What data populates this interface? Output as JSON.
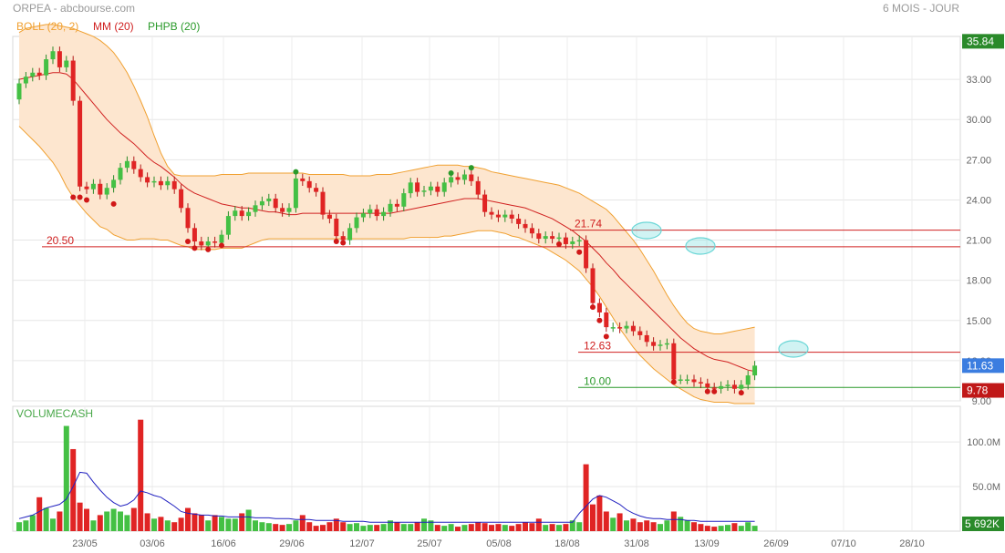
{
  "header": {
    "title": "ORPEA - abcbourse.com",
    "period": "6 MOIS - JOUR"
  },
  "legend": [
    {
      "label": "BOLL (20, 2)",
      "color": "#f0a030"
    },
    {
      "label": "MM (20)",
      "color": "#d02020"
    },
    {
      "label": "PHPB (20)",
      "color": "#2a9a2a"
    }
  ],
  "volume_panel": {
    "label": "VOLUMECASH"
  },
  "colors": {
    "up": "#44c044",
    "down": "#e02424",
    "boll_fill": "#fde6cf",
    "boll_line": "#f0a030",
    "mm": "#d02020",
    "ellipse": "#6ad6d6"
  },
  "chart_data": [
    {
      "type": "candlestick",
      "ylim": [
        9,
        36
      ],
      "y_ticks": [
        "33.00",
        "30.00",
        "27.00",
        "24.00",
        "21.00",
        "18.00",
        "15.00",
        "12.00",
        "9.00"
      ],
      "x_ticks": [
        "23/05",
        "03/06",
        "16/06",
        "29/06",
        "12/07",
        "25/07",
        "05/08",
        "18/08",
        "31/08",
        "13/09",
        "26/09",
        "07/10",
        "28/10"
      ],
      "price_badges": [
        {
          "label": "35.84",
          "value": 35.84,
          "color": "#2a8a2a"
        },
        {
          "label": "11.63",
          "value": 11.63,
          "color": "#3b7de0"
        },
        {
          "label": "9.78",
          "value": 9.78,
          "color": "#c01818"
        }
      ],
      "hlines": [
        {
          "label": "20.50",
          "value": 20.5,
          "color": "#d02020"
        },
        {
          "label": "21.74",
          "value": 21.74,
          "color": "#d02020"
        },
        {
          "label": "12.63",
          "value": 12.63,
          "color": "#d02020"
        },
        {
          "label": "10.00",
          "value": 10.0,
          "color": "#2a9a2a"
        }
      ],
      "close": [
        32.7,
        33.2,
        33.5,
        33.3,
        34.5,
        35.1,
        33.9,
        34.4,
        31.4,
        25.0,
        24.8,
        25.2,
        24.4,
        24.9,
        25.5,
        26.4,
        26.9,
        26.3,
        25.7,
        25.3,
        25.4,
        25.1,
        25.4,
        24.8,
        23.4,
        21.9,
        20.9,
        20.6,
        20.9,
        20.8,
        21.4,
        22.8,
        23.2,
        22.8,
        23.1,
        23.6,
        23.9,
        24.1,
        23.4,
        23.1,
        23.4,
        25.6,
        25.4,
        24.9,
        24.6,
        22.9,
        22.6,
        21.3,
        21.0,
        21.9,
        22.7,
        23.0,
        23.3,
        22.8,
        23.1,
        23.7,
        23.5,
        24.5,
        25.3,
        24.6,
        24.7,
        25.0,
        24.6,
        25.3,
        25.7,
        25.5,
        25.9,
        25.4,
        24.4,
        23.1,
        22.9,
        22.7,
        22.9,
        22.6,
        22.2,
        21.9,
        21.5,
        21.1,
        21.3,
        21.1,
        21.2,
        20.7,
        20.9,
        21.0,
        18.9,
        16.3,
        15.6,
        14.5,
        14.5,
        14.4,
        14.6,
        14.2,
        13.9,
        13.4,
        13.1,
        13.2,
        13.3,
        10.6,
        10.6,
        10.6,
        10.4,
        10.3,
        10.0,
        9.9,
        10.1,
        10.2,
        9.9,
        10.2,
        10.9,
        11.63
      ],
      "bollinger_upper": [
        36.5,
        36.8,
        36.9,
        37.0,
        37.1,
        37.1,
        37.0,
        36.9,
        36.8,
        36.6,
        36.4,
        36.2,
        35.9,
        35.5,
        35.0,
        34.3,
        33.5,
        32.5,
        31.4,
        30.2,
        28.8,
        27.5,
        26.5,
        25.9,
        25.8,
        25.8,
        25.8,
        25.8,
        25.8,
        25.8,
        25.9,
        25.9,
        25.9,
        25.9,
        26.0,
        26.0,
        26.0,
        26.0,
        26.0,
        26.0,
        26.0,
        26.0,
        26.0,
        25.9,
        25.9,
        25.9,
        25.9,
        25.9,
        25.9,
        25.8,
        25.8,
        25.8,
        25.8,
        25.9,
        25.9,
        25.9,
        26.0,
        26.1,
        26.2,
        26.3,
        26.4,
        26.5,
        26.6,
        26.6,
        26.6,
        26.6,
        26.5,
        26.5,
        26.4,
        26.3,
        26.1,
        26.0,
        25.9,
        25.8,
        25.7,
        25.6,
        25.5,
        25.4,
        25.3,
        25.2,
        25.1,
        24.9,
        24.7,
        24.5,
        24.2,
        23.9,
        23.6,
        23.3,
        22.8,
        22.2,
        21.6,
        21.0,
        20.3,
        19.5,
        18.7,
        17.8,
        16.9,
        16.1,
        15.4,
        14.8,
        14.4,
        14.2,
        14.1,
        14.0,
        14.0,
        14.1,
        14.2,
        14.3,
        14.4,
        14.5
      ],
      "bollinger_lower": [
        29.5,
        29.0,
        28.5,
        28.0,
        27.4,
        26.8,
        26.0,
        25.0,
        24.2,
        23.6,
        23.0,
        22.5,
        22.0,
        21.8,
        21.4,
        21.2,
        21.0,
        21.0,
        21.1,
        21.1,
        21.1,
        21.0,
        21.0,
        20.8,
        20.6,
        20.5,
        20.3,
        20.3,
        20.3,
        20.3,
        20.4,
        20.4,
        20.4,
        20.4,
        20.6,
        20.8,
        21.0,
        21.1,
        21.1,
        21.1,
        21.1,
        21.1,
        21.1,
        21.1,
        21.1,
        21.1,
        21.1,
        21.1,
        21.1,
        21.1,
        21.1,
        21.1,
        21.1,
        21.1,
        21.1,
        21.1,
        21.1,
        21.1,
        21.2,
        21.2,
        21.2,
        21.2,
        21.2,
        21.3,
        21.3,
        21.4,
        21.5,
        21.6,
        21.7,
        21.7,
        21.7,
        21.6,
        21.5,
        21.3,
        21.2,
        21.0,
        20.8,
        20.6,
        20.4,
        20.1,
        19.8,
        19.5,
        19.1,
        18.7,
        18.1,
        17.5,
        16.8,
        16.0,
        15.2,
        14.4,
        13.7,
        13.0,
        12.4,
        11.9,
        11.4,
        11.0,
        10.6,
        10.2,
        9.9,
        9.6,
        9.3,
        9.1,
        9.0,
        8.9,
        8.9,
        8.9,
        8.8,
        8.8,
        8.8,
        8.8
      ],
      "moving_average": [
        33.0,
        33.1,
        33.2,
        33.3,
        33.4,
        33.5,
        33.5,
        33.4,
        33.0,
        32.4,
        31.8,
        31.2,
        30.6,
        30.0,
        29.5,
        29.0,
        28.6,
        28.2,
        27.7,
        27.2,
        26.8,
        26.5,
        26.1,
        25.7,
        25.2,
        24.8,
        24.5,
        24.3,
        24.1,
        23.9,
        23.7,
        23.6,
        23.5,
        23.4,
        23.4,
        23.3,
        23.2,
        23.1,
        23.1,
        23.0,
        22.9,
        22.9,
        23.0,
        23.0,
        23.0,
        23.0,
        23.0,
        23.0,
        23.0,
        23.0,
        23.0,
        23.0,
        23.0,
        23.0,
        23.0,
        23.0,
        23.1,
        23.2,
        23.3,
        23.4,
        23.5,
        23.6,
        23.7,
        23.8,
        23.9,
        24.0,
        24.1,
        24.1,
        24.1,
        24.0,
        23.9,
        23.8,
        23.7,
        23.6,
        23.5,
        23.4,
        23.2,
        23.0,
        22.8,
        22.6,
        22.3,
        22.0,
        21.7,
        21.3,
        20.9,
        20.4,
        19.9,
        19.3,
        18.8,
        18.2,
        17.7,
        17.2,
        16.7,
        16.2,
        15.7,
        15.2,
        14.7,
        14.2,
        13.7,
        13.3,
        12.9,
        12.6,
        12.3,
        12.1,
        12.0,
        11.9,
        11.7,
        11.5,
        11.3,
        11.2
      ],
      "phpb_signals": [
        {
          "index": 8,
          "type": "low",
          "value": 24.2
        },
        {
          "index": 9,
          "type": "low",
          "value": 24.2
        },
        {
          "index": 10,
          "type": "low",
          "value": 24.0
        },
        {
          "index": 14,
          "type": "low",
          "value": 23.7
        },
        {
          "index": 25,
          "type": "low",
          "value": 20.9
        },
        {
          "index": 26,
          "type": "low",
          "value": 20.4
        },
        {
          "index": 28,
          "type": "low",
          "value": 20.3
        },
        {
          "index": 30,
          "type": "low",
          "value": 20.6
        },
        {
          "index": 41,
          "type": "high",
          "value": 26.1
        },
        {
          "index": 47,
          "type": "low",
          "value": 20.9
        },
        {
          "index": 48,
          "type": "low",
          "value": 20.8
        },
        {
          "index": 64,
          "type": "high",
          "value": 26.0
        },
        {
          "index": 67,
          "type": "high",
          "value": 26.4
        },
        {
          "index": 80,
          "type": "low",
          "value": 20.7
        },
        {
          "index": 83,
          "type": "low",
          "value": 20.1
        },
        {
          "index": 85,
          "type": "low",
          "value": 16.0
        },
        {
          "index": 86,
          "type": "low",
          "value": 15.0
        },
        {
          "index": 87,
          "type": "low",
          "value": 13.8
        },
        {
          "index": 97,
          "type": "low",
          "value": 10.4
        },
        {
          "index": 102,
          "type": "low",
          "value": 9.7
        },
        {
          "index": 103,
          "type": "low",
          "value": 9.7
        },
        {
          "index": 107,
          "type": "low",
          "value": 9.6
        }
      ]
    },
    {
      "type": "bar",
      "title": "VOLUMECASH",
      "ylim": [
        0,
        140
      ],
      "y_ticks": [
        "100.0M",
        "50.0M"
      ],
      "value_badge": "5 692K",
      "values": [
        10,
        12,
        18,
        38,
        26,
        14,
        22,
        118,
        92,
        32,
        25,
        12,
        18,
        22,
        25,
        22,
        18,
        26,
        125,
        20,
        14,
        16,
        12,
        10,
        15,
        26,
        20,
        18,
        12,
        18,
        16,
        14,
        14,
        20,
        24,
        12,
        10,
        9,
        8,
        7,
        8,
        12,
        18,
        10,
        6,
        7,
        10,
        14,
        10,
        8,
        9,
        6,
        7,
        7,
        8,
        12,
        10,
        8,
        8,
        10,
        14,
        12,
        7,
        6,
        8,
        5,
        7,
        8,
        10,
        9,
        7,
        8,
        7,
        6,
        8,
        10,
        9,
        14,
        7,
        8,
        7,
        8,
        12,
        10,
        75,
        30,
        40,
        22,
        15,
        20,
        12,
        14,
        10,
        12,
        10,
        8,
        12,
        22,
        16,
        12,
        10,
        8,
        6,
        5,
        6,
        7,
        9,
        6,
        10,
        6
      ],
      "average_line": [
        14,
        16,
        18,
        22,
        26,
        28,
        30,
        36,
        50,
        66,
        65,
        55,
        46,
        38,
        32,
        28,
        30,
        35,
        45,
        43,
        40,
        38,
        33,
        28,
        22,
        20,
        19,
        18,
        18,
        17,
        17,
        16,
        16,
        16,
        16,
        15,
        15,
        15,
        14,
        14,
        14,
        13,
        13,
        13,
        12,
        12,
        12,
        12,
        11,
        11,
        11,
        11,
        10,
        10,
        10,
        10,
        10,
        10,
        10,
        10,
        10,
        10,
        10,
        10,
        10,
        10,
        10,
        10,
        10,
        10,
        10,
        10,
        10,
        10,
        10,
        10,
        10,
        10,
        10,
        10,
        10,
        10,
        10,
        20,
        28,
        36,
        40,
        38,
        34,
        30,
        24,
        20,
        17,
        15,
        14,
        14,
        13,
        13,
        13,
        12,
        12,
        11,
        11,
        11,
        11,
        11,
        11,
        11,
        11,
        11
      ]
    }
  ]
}
